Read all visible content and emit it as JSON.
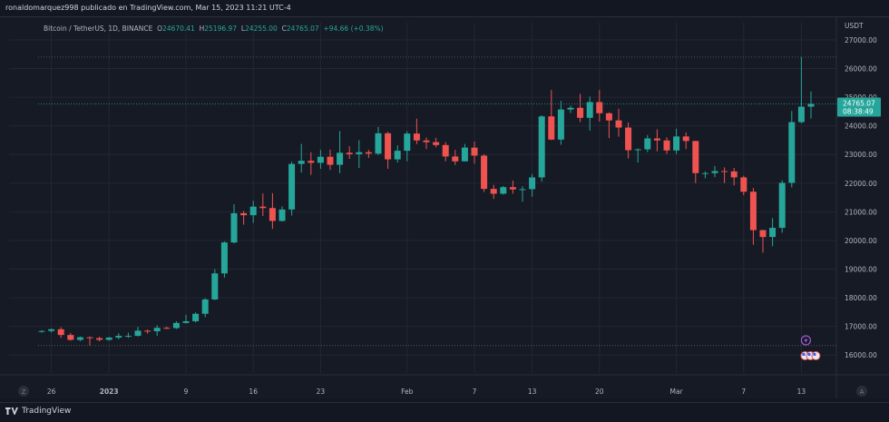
{
  "header": {
    "published": "ronaldomarquez998 publicado en TradingView.com, Mar 15, 2023 11:21 UTC-4"
  },
  "legend": {
    "symbol": "Bitcoin / TetherUS, 1D, BINANCE",
    "o_label": "O",
    "o": "24670.41",
    "h_label": "H",
    "h": "25196.97",
    "l_label": "L",
    "l": "24255.00",
    "c_label": "C",
    "c": "24765.07",
    "change": "+94.66 (+0.38%)"
  },
  "price_axis": {
    "currency": "USDT",
    "last_price": "24765.07",
    "countdown": "08:38:49"
  },
  "footer": {
    "brand": "TradingView",
    "left_button": "Z",
    "right_button": "A"
  },
  "colors": {
    "up": "#26a69a",
    "down": "#ef5350",
    "background": "#161a25",
    "grid": "#242733",
    "text": "#b2b5be"
  },
  "chart_data": {
    "type": "candlestick",
    "timeframe": "1D",
    "exchange": "BINANCE",
    "symbol": "Bitcoin / TetherUS",
    "ylim": [
      15500,
      27600
    ],
    "y_ticks": [
      "27000.00",
      "26000.00",
      "25000.00",
      "24000.00",
      "23000.00",
      "22000.00",
      "21000.00",
      "20000.00",
      "19000.00",
      "18000.00",
      "17000.00",
      "16000.00"
    ],
    "x_ticks": [
      "26",
      "2023",
      "9",
      "16",
      "23",
      "Feb",
      "7",
      "13",
      "20",
      "Mar",
      "7",
      "13"
    ],
    "x_tick_candle_index": [
      1,
      7,
      15,
      22,
      29,
      38,
      45,
      51,
      58,
      66,
      73,
      79
    ],
    "candles": [
      {
        "date": "2022-12-25",
        "o": 16830,
        "h": 16870,
        "l": 16780,
        "c": 16840
      },
      {
        "date": "2022-12-26",
        "o": 16840,
        "h": 16930,
        "l": 16790,
        "c": 16900
      },
      {
        "date": "2022-12-27",
        "o": 16900,
        "h": 16970,
        "l": 16600,
        "c": 16700
      },
      {
        "date": "2022-12-28",
        "o": 16700,
        "h": 16770,
        "l": 16500,
        "c": 16530
      },
      {
        "date": "2022-12-29",
        "o": 16530,
        "h": 16650,
        "l": 16480,
        "c": 16620
      },
      {
        "date": "2022-12-30",
        "o": 16620,
        "h": 16650,
        "l": 16330,
        "c": 16590
      },
      {
        "date": "2022-12-31",
        "o": 16590,
        "h": 16640,
        "l": 16480,
        "c": 16530
      },
      {
        "date": "2023-01-01",
        "o": 16530,
        "h": 16630,
        "l": 16500,
        "c": 16610
      },
      {
        "date": "2023-01-02",
        "o": 16610,
        "h": 16760,
        "l": 16550,
        "c": 16670
      },
      {
        "date": "2023-01-03",
        "o": 16670,
        "h": 16780,
        "l": 16600,
        "c": 16670
      },
      {
        "date": "2023-01-04",
        "o": 16670,
        "h": 16980,
        "l": 16650,
        "c": 16850
      },
      {
        "date": "2023-01-05",
        "o": 16850,
        "h": 16890,
        "l": 16750,
        "c": 16830
      },
      {
        "date": "2023-01-06",
        "o": 16830,
        "h": 17040,
        "l": 16670,
        "c": 16950
      },
      {
        "date": "2023-01-07",
        "o": 16950,
        "h": 16990,
        "l": 16900,
        "c": 16940
      },
      {
        "date": "2023-01-08",
        "o": 16940,
        "h": 17180,
        "l": 16910,
        "c": 17120
      },
      {
        "date": "2023-01-09",
        "o": 17120,
        "h": 17400,
        "l": 17100,
        "c": 17180
      },
      {
        "date": "2023-01-10",
        "o": 17180,
        "h": 17490,
        "l": 17140,
        "c": 17440
      },
      {
        "date": "2023-01-11",
        "o": 17440,
        "h": 17990,
        "l": 17320,
        "c": 17940
      },
      {
        "date": "2023-01-12",
        "o": 17940,
        "h": 19000,
        "l": 17920,
        "c": 18850
      },
      {
        "date": "2023-01-13",
        "o": 18850,
        "h": 19970,
        "l": 18700,
        "c": 19930
      },
      {
        "date": "2023-01-14",
        "o": 19930,
        "h": 21260,
        "l": 19900,
        "c": 20950
      },
      {
        "date": "2023-01-15",
        "o": 20950,
        "h": 21030,
        "l": 20550,
        "c": 20880
      },
      {
        "date": "2023-01-16",
        "o": 20880,
        "h": 21380,
        "l": 20610,
        "c": 21180
      },
      {
        "date": "2023-01-17",
        "o": 21180,
        "h": 21640,
        "l": 20850,
        "c": 21130
      },
      {
        "date": "2023-01-18",
        "o": 21130,
        "h": 21650,
        "l": 20400,
        "c": 20680
      },
      {
        "date": "2023-01-19",
        "o": 20680,
        "h": 21190,
        "l": 20660,
        "c": 21080
      },
      {
        "date": "2023-01-20",
        "o": 21080,
        "h": 22750,
        "l": 20870,
        "c": 22670
      },
      {
        "date": "2023-01-21",
        "o": 22670,
        "h": 23370,
        "l": 22370,
        "c": 22780
      },
      {
        "date": "2023-01-22",
        "o": 22780,
        "h": 23080,
        "l": 22290,
        "c": 22710
      },
      {
        "date": "2023-01-23",
        "o": 22710,
        "h": 23160,
        "l": 22500,
        "c": 22920
      },
      {
        "date": "2023-01-24",
        "o": 22920,
        "h": 23170,
        "l": 22460,
        "c": 22640
      },
      {
        "date": "2023-01-25",
        "o": 22640,
        "h": 23820,
        "l": 22350,
        "c": 23060
      },
      {
        "date": "2023-01-26",
        "o": 23060,
        "h": 23290,
        "l": 22850,
        "c": 23010
      },
      {
        "date": "2023-01-27",
        "o": 23010,
        "h": 23500,
        "l": 22530,
        "c": 23080
      },
      {
        "date": "2023-01-28",
        "o": 23080,
        "h": 23160,
        "l": 22880,
        "c": 23030
      },
      {
        "date": "2023-01-29",
        "o": 23030,
        "h": 23960,
        "l": 22980,
        "c": 23740
      },
      {
        "date": "2023-01-30",
        "o": 23740,
        "h": 23790,
        "l": 22500,
        "c": 22830
      },
      {
        "date": "2023-01-31",
        "o": 22830,
        "h": 23320,
        "l": 22720,
        "c": 23130
      },
      {
        "date": "2023-02-01",
        "o": 23130,
        "h": 23810,
        "l": 22760,
        "c": 23730
      },
      {
        "date": "2023-02-02",
        "o": 23730,
        "h": 24250,
        "l": 23360,
        "c": 23490
      },
      {
        "date": "2023-02-03",
        "o": 23490,
        "h": 23590,
        "l": 23190,
        "c": 23430
      },
      {
        "date": "2023-02-04",
        "o": 23430,
        "h": 23580,
        "l": 23250,
        "c": 23330
      },
      {
        "date": "2023-02-05",
        "o": 23330,
        "h": 23430,
        "l": 22760,
        "c": 22930
      },
      {
        "date": "2023-02-06",
        "o": 22930,
        "h": 23160,
        "l": 22630,
        "c": 22760
      },
      {
        "date": "2023-02-07",
        "o": 22760,
        "h": 23370,
        "l": 22760,
        "c": 23240
      },
      {
        "date": "2023-02-08",
        "o": 23240,
        "h": 23450,
        "l": 22680,
        "c": 22960
      },
      {
        "date": "2023-02-09",
        "o": 22960,
        "h": 23010,
        "l": 21690,
        "c": 21800
      },
      {
        "date": "2023-02-10",
        "o": 21800,
        "h": 21940,
        "l": 21450,
        "c": 21630
      },
      {
        "date": "2023-02-11",
        "o": 21630,
        "h": 21900,
        "l": 21600,
        "c": 21860
      },
      {
        "date": "2023-02-12",
        "o": 21860,
        "h": 22090,
        "l": 21630,
        "c": 21780
      },
      {
        "date": "2023-02-13",
        "o": 21780,
        "h": 21890,
        "l": 21350,
        "c": 21790
      },
      {
        "date": "2023-02-14",
        "o": 21790,
        "h": 22320,
        "l": 21530,
        "c": 22200
      },
      {
        "date": "2023-02-15",
        "o": 22200,
        "h": 24370,
        "l": 22050,
        "c": 24330
      },
      {
        "date": "2023-02-16",
        "o": 24330,
        "h": 25250,
        "l": 23500,
        "c": 23520
      },
      {
        "date": "2023-02-17",
        "o": 23520,
        "h": 24870,
        "l": 23340,
        "c": 24570
      },
      {
        "date": "2023-02-18",
        "o": 24570,
        "h": 24700,
        "l": 24450,
        "c": 24630
      },
      {
        "date": "2023-02-19",
        "o": 24630,
        "h": 25120,
        "l": 24130,
        "c": 24280
      },
      {
        "date": "2023-02-20",
        "o": 24280,
        "h": 25020,
        "l": 23830,
        "c": 24830
      },
      {
        "date": "2023-02-21",
        "o": 24830,
        "h": 25250,
        "l": 24150,
        "c": 24440
      },
      {
        "date": "2023-02-22",
        "o": 24440,
        "h": 24470,
        "l": 23570,
        "c": 24190
      },
      {
        "date": "2023-02-23",
        "o": 24190,
        "h": 24600,
        "l": 23620,
        "c": 23940
      },
      {
        "date": "2023-02-24",
        "o": 23940,
        "h": 24120,
        "l": 22860,
        "c": 23150
      },
      {
        "date": "2023-02-25",
        "o": 23150,
        "h": 23210,
        "l": 22720,
        "c": 23180
      },
      {
        "date": "2023-02-26",
        "o": 23180,
        "h": 23680,
        "l": 23080,
        "c": 23560
      },
      {
        "date": "2023-02-27",
        "o": 23560,
        "h": 23880,
        "l": 23110,
        "c": 23490
      },
      {
        "date": "2023-02-28",
        "o": 23490,
        "h": 23600,
        "l": 23020,
        "c": 23140
      },
      {
        "date": "2023-03-01",
        "o": 23140,
        "h": 23900,
        "l": 23020,
        "c": 23630
      },
      {
        "date": "2023-03-02",
        "o": 23630,
        "h": 23770,
        "l": 23190,
        "c": 23470
      },
      {
        "date": "2023-03-03",
        "o": 23470,
        "h": 23480,
        "l": 22000,
        "c": 22350
      },
      {
        "date": "2023-03-04",
        "o": 22350,
        "h": 22410,
        "l": 22170,
        "c": 22350
      },
      {
        "date": "2023-03-05",
        "o": 22350,
        "h": 22600,
        "l": 22210,
        "c": 22420
      },
      {
        "date": "2023-03-06",
        "o": 22420,
        "h": 22550,
        "l": 22000,
        "c": 22410
      },
      {
        "date": "2023-03-07",
        "o": 22410,
        "h": 22530,
        "l": 21920,
        "c": 22200
      },
      {
        "date": "2023-03-08",
        "o": 22200,
        "h": 22260,
        "l": 21580,
        "c": 21700
      },
      {
        "date": "2023-03-09",
        "o": 21700,
        "h": 21830,
        "l": 19850,
        "c": 20360
      },
      {
        "date": "2023-03-10",
        "o": 20360,
        "h": 20370,
        "l": 19570,
        "c": 20120
      },
      {
        "date": "2023-03-11",
        "o": 20120,
        "h": 20780,
        "l": 19800,
        "c": 20440
      },
      {
        "date": "2023-03-12",
        "o": 20440,
        "h": 22100,
        "l": 20270,
        "c": 22010
      },
      {
        "date": "2023-03-13",
        "o": 22010,
        "h": 24520,
        "l": 21850,
        "c": 24130
      },
      {
        "date": "2023-03-14",
        "o": 24130,
        "h": 26400,
        "l": 24090,
        "c": 24670
      },
      {
        "date": "2023-03-15",
        "o": 24670,
        "h": 25200,
        "l": 24255,
        "c": 24765
      }
    ]
  }
}
